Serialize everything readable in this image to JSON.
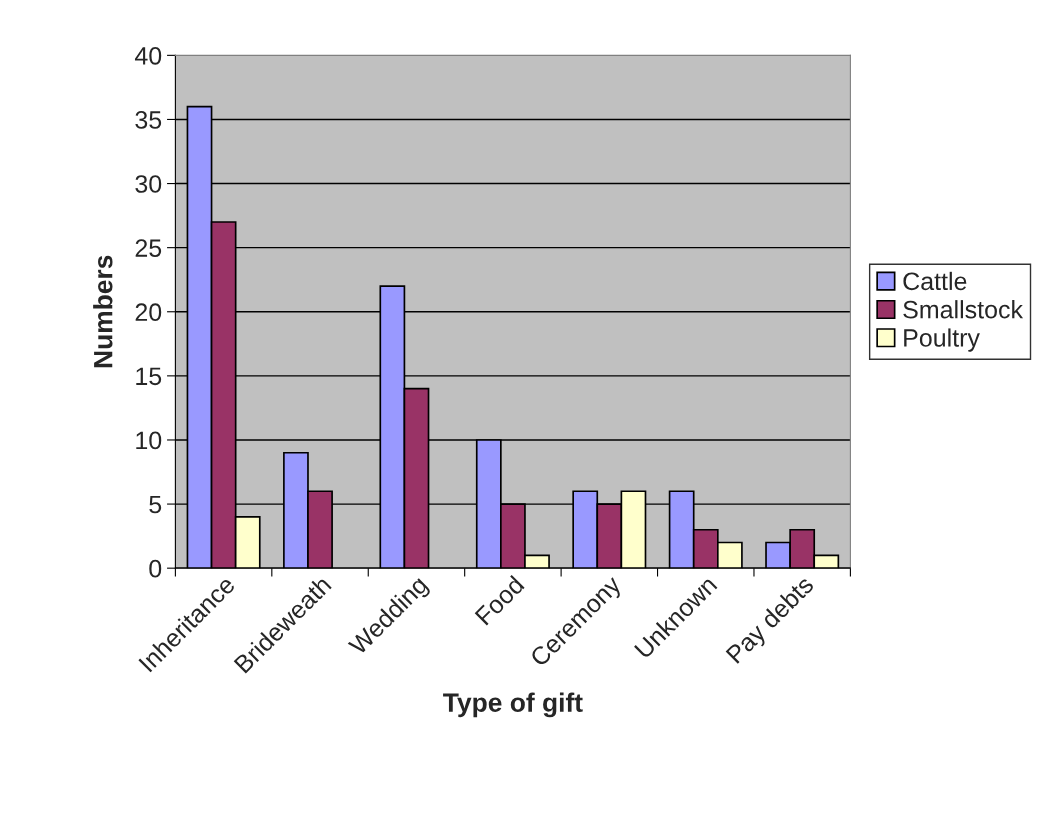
{
  "chart_data": {
    "type": "bar",
    "xlabel": "Type of gift",
    "ylabel": "Numbers",
    "categories": [
      "Inheritance",
      "Brideweath",
      "Wedding",
      "Food",
      "Ceremony",
      "Unknown",
      "Pay debts"
    ],
    "series": [
      {
        "name": "Cattle",
        "color": "#9999ff",
        "values": [
          36,
          9,
          22,
          10,
          6,
          6,
          2
        ]
      },
      {
        "name": "Smallstock",
        "color": "#993366",
        "values": [
          27,
          6,
          14,
          5,
          5,
          3,
          3
        ]
      },
      {
        "name": "Poultry",
        "color": "#ffffcc",
        "values": [
          4,
          null,
          null,
          1,
          6,
          2,
          1
        ]
      }
    ],
    "ylim": [
      0,
      40
    ],
    "yticks": [
      0,
      5,
      10,
      15,
      20,
      25,
      30,
      35,
      40
    ],
    "grid": "y",
    "legend": "right"
  }
}
